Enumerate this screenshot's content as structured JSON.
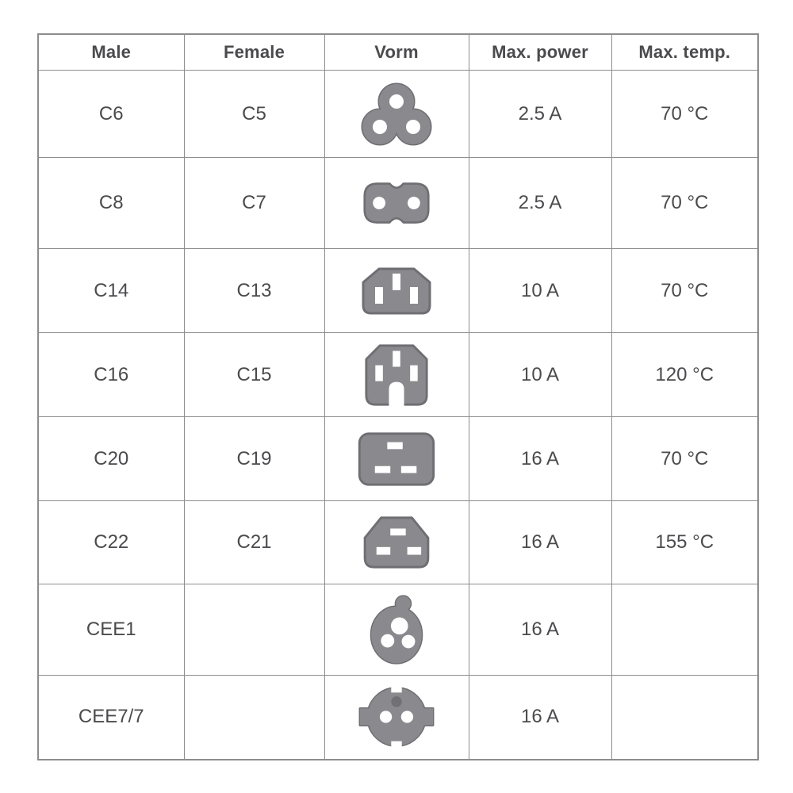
{
  "table": {
    "headers": [
      "Male",
      "Female",
      "Vorm",
      "Max. power",
      "Max. temp."
    ],
    "rows": [
      {
        "male": "C6",
        "female": "C5",
        "icon": "c5-cloverleaf-connector-icon",
        "power": "2.5 A",
        "temp": "70 °C"
      },
      {
        "male": "C8",
        "female": "C7",
        "icon": "c7-figure8-connector-icon",
        "power": "2.5 A",
        "temp": "70 °C"
      },
      {
        "male": "C14",
        "female": "C13",
        "icon": "c13-connector-icon",
        "power": "10 A",
        "temp": "70 °C"
      },
      {
        "male": "C16",
        "female": "C15",
        "icon": "c15-connector-icon",
        "power": "10 A",
        "temp": "120 °C"
      },
      {
        "male": "C20",
        "female": "C19",
        "icon": "c19-connector-icon",
        "power": "16 A",
        "temp": "70 °C"
      },
      {
        "male": "C22",
        "female": "C21",
        "icon": "c21-connector-icon",
        "power": "16 A",
        "temp": "155 °C"
      },
      {
        "male": "CEE1",
        "female": "",
        "icon": "cee1-connector-icon",
        "power": "16 A",
        "temp": ""
      },
      {
        "male": "CEE7/7",
        "female": "",
        "icon": "cee7-7-schuko-connector-icon",
        "power": "16 A",
        "temp": ""
      }
    ]
  },
  "chart_data": {
    "type": "table",
    "columns": [
      "Male",
      "Female",
      "Vorm",
      "Max. power",
      "Max. temp."
    ],
    "rows": [
      [
        "C6",
        "C5",
        "c5-cloverleaf-connector-icon",
        "2.5 A",
        "70 °C"
      ],
      [
        "C8",
        "C7",
        "c7-figure8-connector-icon",
        "2.5 A",
        "70 °C"
      ],
      [
        "C14",
        "C13",
        "c13-connector-icon",
        "10 A",
        "70 °C"
      ],
      [
        "C16",
        "C15",
        "c15-connector-icon",
        "10 A",
        "120 °C"
      ],
      [
        "C20",
        "C19",
        "c19-connector-icon",
        "16 A",
        "70 °C"
      ],
      [
        "C22",
        "C21",
        "c21-connector-icon",
        "16 A",
        "155 °C"
      ],
      [
        "CEE1",
        "",
        "cee1-connector-icon",
        "16 A",
        ""
      ],
      [
        "CEE7/7",
        "",
        "cee7-7-schuko-connector-icon",
        "16 A",
        ""
      ]
    ]
  },
  "colors": {
    "shape_fill": "#8a8a8e",
    "shape_stroke": "#6f6f73",
    "earth_dot": "#717175",
    "grid_border": "#8d8d8d",
    "text": "#4b4b4e"
  }
}
